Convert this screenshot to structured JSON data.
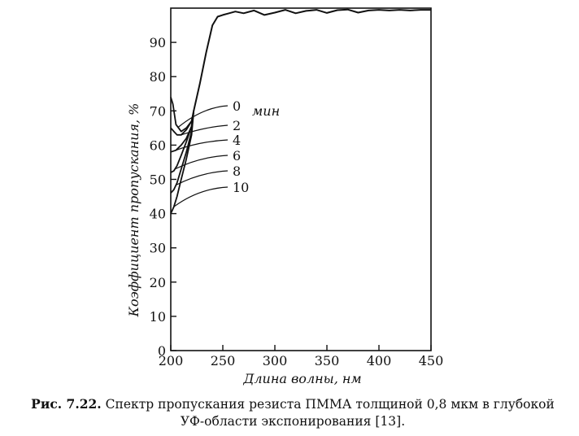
{
  "chart_data": {
    "type": "line",
    "title": "",
    "xlabel": "Длина волны, нм",
    "ylabel": "Коэффициент  пропускания, %",
    "xlim": [
      200,
      450
    ],
    "ylim": [
      0,
      100
    ],
    "x_ticks": [
      200,
      250,
      300,
      350,
      400,
      450
    ],
    "x_tick_labels": [
      "200",
      "250",
      "300",
      "350",
      "400",
      "450"
    ],
    "y_ticks": [
      0,
      10,
      20,
      30,
      40,
      50,
      60,
      70,
      80,
      90
    ],
    "y_tick_labels": [
      "0",
      "10",
      "20",
      "30",
      "40",
      "50",
      "60",
      "70",
      "80",
      "90"
    ],
    "grid": false,
    "unit_label": "мин",
    "common_curve": {
      "x": [
        222,
        228,
        234,
        240,
        245,
        250,
        256,
        262,
        270,
        280,
        290,
        300,
        310,
        320,
        330,
        340,
        350,
        360,
        370,
        380,
        390,
        400,
        410,
        420,
        430,
        440,
        450
      ],
      "y": [
        70,
        78,
        87,
        95,
        97.5,
        98,
        98.5,
        99,
        98.5,
        99.3,
        98,
        98.7,
        99.5,
        98.5,
        99.2,
        99.5,
        98.6,
        99.4,
        99.6,
        98.7,
        99.3,
        99.5,
        99.3,
        99.5,
        99.3,
        99.5,
        99.5
      ]
    },
    "series": [
      {
        "label": "0",
        "x": [
          200,
          202,
          205,
          210,
          215,
          220,
          222
        ],
        "y": [
          74,
          72,
          66,
          64,
          65,
          67,
          70
        ]
      },
      {
        "label": "2",
        "x": [
          200,
          203,
          206,
          210,
          215,
          220,
          222
        ],
        "y": [
          65,
          64,
          63,
          63,
          64.5,
          67,
          70
        ]
      },
      {
        "label": "4",
        "x": [
          200,
          205,
          210,
          215,
          220,
          222
        ],
        "y": [
          58,
          58.5,
          60,
          62,
          65.5,
          70
        ]
      },
      {
        "label": "6",
        "x": [
          200,
          203,
          206,
          210,
          215,
          220,
          222
        ],
        "y": [
          52,
          52.5,
          54,
          57,
          61,
          65.5,
          70
        ]
      },
      {
        "label": "8",
        "x": [
          200,
          203,
          206,
          210,
          215,
          220,
          222
        ],
        "y": [
          46,
          47,
          49,
          53,
          58,
          64,
          70
        ]
      },
      {
        "label": "10",
        "x": [
          200,
          203,
          206,
          210,
          215,
          220,
          222
        ],
        "y": [
          40,
          42,
          45,
          50,
          56,
          63,
          70
        ]
      }
    ]
  },
  "caption": {
    "lead": "Рис. 7.22.",
    "line1": "Спектр пропускания резиста ПММА толщиной 0,8 мкм в глубокой",
    "line2": "УФ-области экспонирования [13]."
  }
}
